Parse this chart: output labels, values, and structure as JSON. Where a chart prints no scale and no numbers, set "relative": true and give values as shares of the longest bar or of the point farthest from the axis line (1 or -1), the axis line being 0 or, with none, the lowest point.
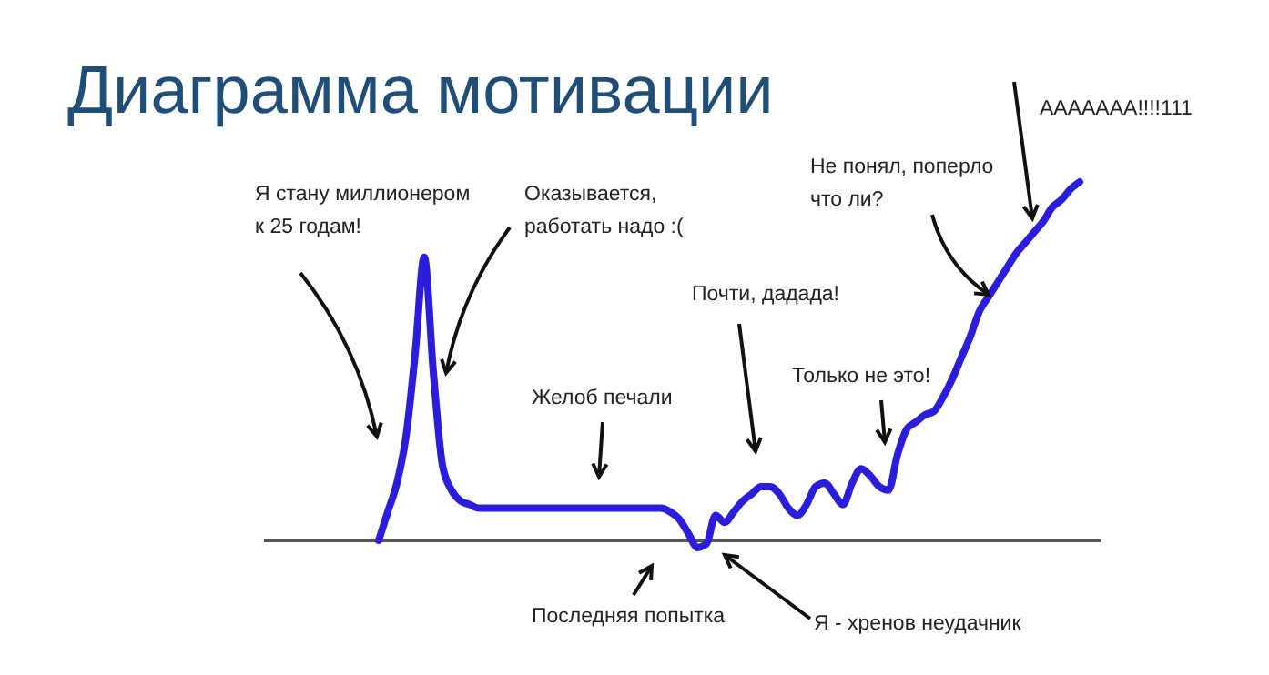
{
  "chart_data": {
    "type": "line",
    "title": "Диаграмма мотивации",
    "relative": true,
    "categories": [
      null,
      null,
      null,
      null,
      null,
      null,
      null,
      null,
      null,
      null,
      null,
      null,
      null,
      null,
      null,
      null,
      null,
      null,
      null,
      null,
      null,
      null,
      null,
      null,
      null,
      null,
      null,
      null,
      null,
      null,
      null,
      null,
      null,
      null,
      null,
      null,
      null,
      null,
      null,
      null,
      null,
      null,
      null,
      null,
      null,
      null,
      null,
      null,
      null,
      null,
      null,
      null,
      null,
      null,
      null,
      null,
      null,
      null,
      null,
      null,
      null,
      null,
      null,
      null,
      null,
      null,
      null,
      null,
      null,
      null,
      null,
      null,
      null,
      null,
      null,
      null,
      null,
      null
    ],
    "values": [
      0,
      0.08,
      0.16,
      0.29,
      0.52,
      0.79,
      0.47,
      0.21,
      0.14,
      0.11,
      0.1,
      0.09,
      0.09,
      0.09,
      0.09,
      0.09,
      0.09,
      0.09,
      0.09,
      0.09,
      0.09,
      0.09,
      0.09,
      0.09,
      0.09,
      0.09,
      0.09,
      0.09,
      0.09,
      0.09,
      0.09,
      0.09,
      0.08,
      0.06,
      0.02,
      -0.02,
      -0.01,
      0.07,
      0.05,
      0.08,
      0.11,
      0.13,
      0.15,
      0.15,
      0.13,
      0.09,
      0.07,
      0.1,
      0.15,
      0.16,
      0.13,
      0.1,
      0.16,
      0.2,
      0.18,
      0.15,
      0.14,
      0.24,
      0.31,
      0.33,
      0.35,
      0.36,
      0.4,
      0.45,
      0.51,
      0.57,
      0.64,
      0.68,
      0.72,
      0.76,
      0.8,
      0.83,
      0.86,
      0.89,
      0.93,
      0.95,
      0.98,
      1
    ],
    "color": "#2a1ddb",
    "annotations": [
      "Я стану миллионером\nк 25 годам!",
      "Оказывается,\nработать надо :(",
      "Желоб печали",
      "Последняя попытка",
      "Я - хренов неудачник",
      "Почти, дадада!",
      "Только не это!",
      "Не понял, поперло\nчто ли?",
      "ААААААА!!!!111"
    ]
  }
}
